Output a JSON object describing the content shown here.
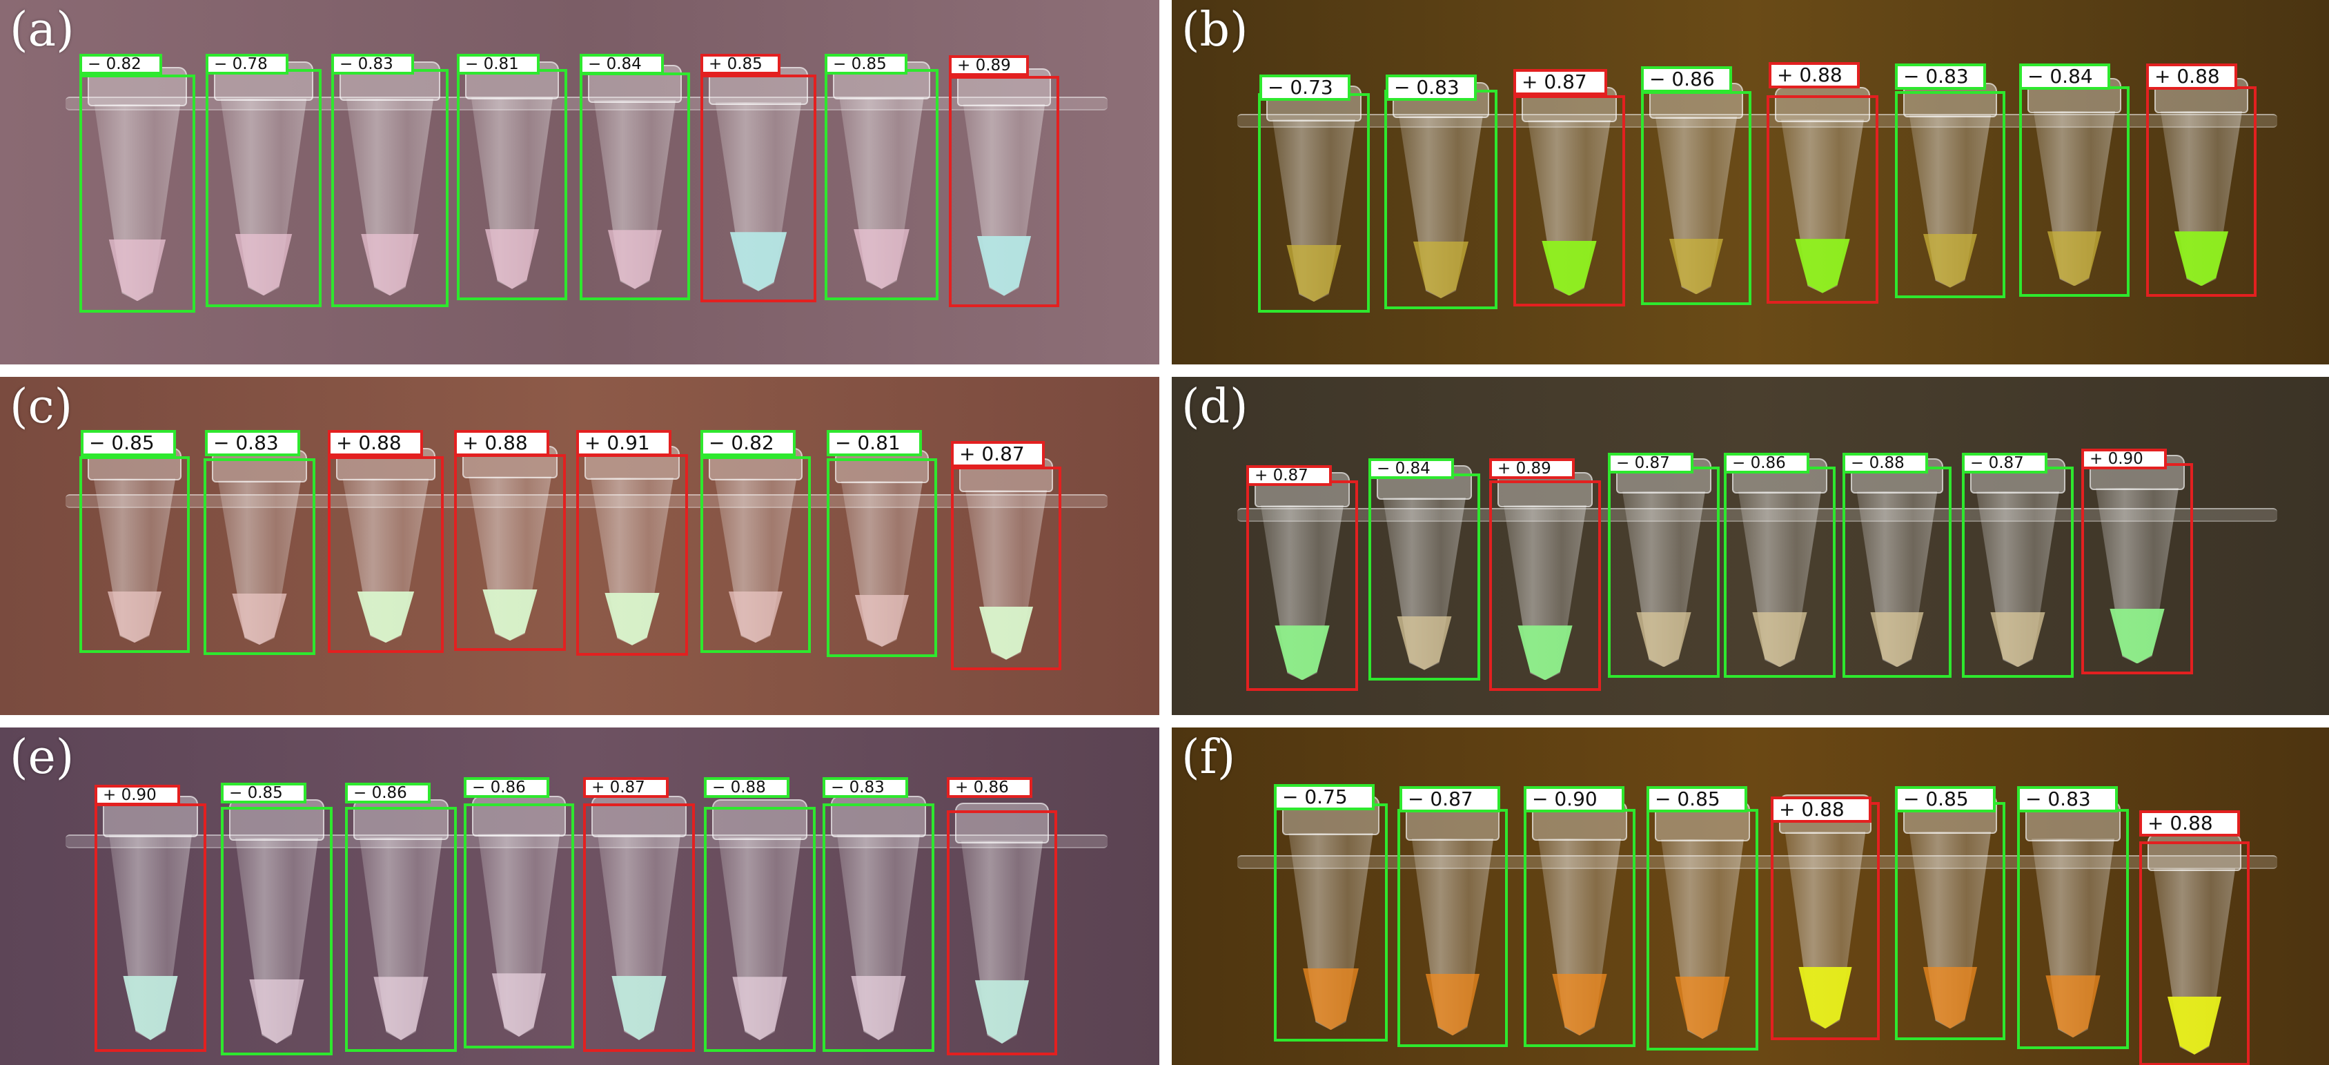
{
  "figure": {
    "colors": {
      "negative": "#2ee82e",
      "positive": "#e32020"
    },
    "panels": [
      {
        "letter": "(a)",
        "bg": [
          "#8a6a73",
          "#7b5d66",
          "#8d6f77"
        ],
        "liquid_neg": "#e9c2d2",
        "liquid_pos": "#b5e6e4",
        "label_style": "small",
        "tubes": [
          {
            "label": "− 0.82",
            "result": "negative"
          },
          {
            "label": "− 0.78",
            "result": "negative"
          },
          {
            "label": "− 0.83",
            "result": "negative"
          },
          {
            "label": "− 0.81",
            "result": "negative"
          },
          {
            "label": "− 0.84",
            "result": "negative"
          },
          {
            "label": "+ 0.85",
            "result": "positive"
          },
          {
            "label": "− 0.85",
            "result": "negative"
          },
          {
            "label": "+ 0.89",
            "result": "positive"
          }
        ]
      },
      {
        "letter": "(b)",
        "bg": [
          "#4b3512",
          "#6a4b17",
          "#4a3411"
        ],
        "liquid_neg": "#c9b23a",
        "liquid_pos": "#8ff21e",
        "label_style": "large",
        "tubes": [
          {
            "label": "− 0.73",
            "result": "negative"
          },
          {
            "label": "− 0.83",
            "result": "negative"
          },
          {
            "label": "+ 0.87",
            "result": "positive"
          },
          {
            "label": "− 0.86",
            "result": "negative"
          },
          {
            "label": "+ 0.88",
            "result": "positive"
          },
          {
            "label": "− 0.83",
            "result": "negative"
          },
          {
            "label": "− 0.84",
            "result": "negative"
          },
          {
            "label": "+ 0.88",
            "result": "positive"
          }
        ]
      },
      {
        "letter": "(c)",
        "bg": [
          "#7a4b3f",
          "#8d5a48",
          "#7a4a3e"
        ],
        "liquid_neg": "#e9c5c2",
        "liquid_pos": "#d9f5cc",
        "label_style": "large",
        "tubes": [
          {
            "label": "− 0.85",
            "result": "negative"
          },
          {
            "label": "− 0.83",
            "result": "negative"
          },
          {
            "label": "+ 0.88",
            "result": "positive"
          },
          {
            "label": "+ 0.88",
            "result": "positive"
          },
          {
            "label": "+ 0.91",
            "result": "positive"
          },
          {
            "label": "− 0.82",
            "result": "negative"
          },
          {
            "label": "− 0.81",
            "result": "negative"
          },
          {
            "label": "+ 0.87",
            "result": "positive"
          }
        ]
      },
      {
        "letter": "(d)",
        "bg": [
          "#3d3528",
          "#4a3f2e",
          "#3b3326"
        ],
        "liquid_neg": "#d9c79a",
        "liquid_pos": "#8ef08a",
        "label_style": "small",
        "tubes": [
          {
            "label": "+ 0.87",
            "result": "positive"
          },
          {
            "label": "− 0.84",
            "result": "negative"
          },
          {
            "label": "+ 0.89",
            "result": "positive"
          },
          {
            "label": "− 0.87",
            "result": "negative"
          },
          {
            "label": "− 0.86",
            "result": "negative"
          },
          {
            "label": "− 0.88",
            "result": "negative"
          },
          {
            "label": "− 0.87",
            "result": "negative"
          },
          {
            "label": "+ 0.90",
            "result": "positive"
          }
        ]
      },
      {
        "letter": "(e)",
        "bg": [
          "#5d4557",
          "#6e5262",
          "#5b4352"
        ],
        "liquid_neg": "#e6cfdc",
        "liquid_pos": "#bfe8dc",
        "label_style": "small",
        "tubes": [
          {
            "label": "+ 0.90",
            "result": "positive"
          },
          {
            "label": "− 0.85",
            "result": "negative"
          },
          {
            "label": "− 0.86",
            "result": "negative"
          },
          {
            "label": "− 0.86",
            "result": "negative"
          },
          {
            "label": "+ 0.87",
            "result": "positive"
          },
          {
            "label": "− 0.88",
            "result": "negative"
          },
          {
            "label": "− 0.83",
            "result": "negative"
          },
          {
            "label": "+ 0.86",
            "result": "positive"
          }
        ]
      },
      {
        "letter": "(f)",
        "bg": [
          "#4e3510",
          "#6b4814",
          "#4d3410"
        ],
        "liquid_neg": "#f08a1f",
        "liquid_pos": "#e8f01a",
        "label_style": "large",
        "tubes": [
          {
            "label": "− 0.75",
            "result": "negative"
          },
          {
            "label": "− 0.87",
            "result": "negative"
          },
          {
            "label": "− 0.90",
            "result": "negative"
          },
          {
            "label": "− 0.85",
            "result": "negative"
          },
          {
            "label": "+ 0.88",
            "result": "positive"
          },
          {
            "label": "− 0.85",
            "result": "negative"
          },
          {
            "label": "− 0.83",
            "result": "negative"
          },
          {
            "label": "+ 0.88",
            "result": "positive"
          }
        ]
      }
    ]
  }
}
